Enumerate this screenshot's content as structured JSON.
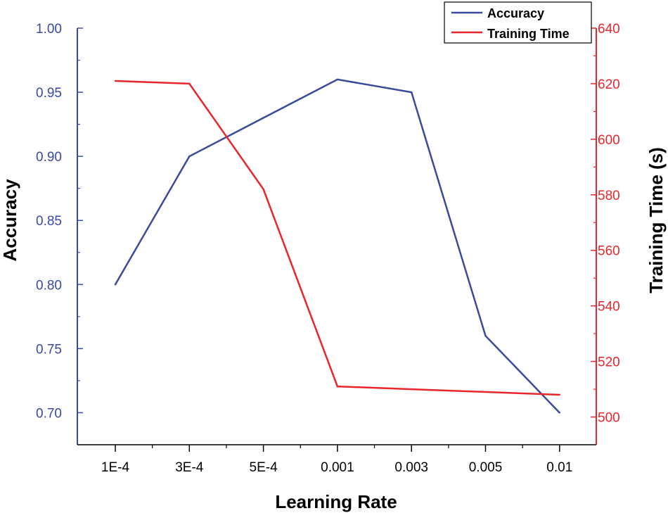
{
  "chart_data": {
    "type": "line",
    "categories": [
      "1E-4",
      "3E-4",
      "5E-4",
      "0.001",
      "0.003",
      "0.005",
      "0.01"
    ],
    "xlabel": "Learning Rate",
    "series": [
      {
        "name": "Accuracy",
        "axis": "left",
        "color": "#3a4a9c",
        "values": [
          0.8,
          0.9,
          0.93,
          0.96,
          0.95,
          0.76,
          0.7
        ]
      },
      {
        "name": "Training Time",
        "axis": "right",
        "color": "#e8262c",
        "values": [
          621,
          620,
          582,
          511,
          510,
          509,
          508
        ]
      }
    ],
    "y_left": {
      "label": "Accuracy",
      "ylim": [
        0.675,
        1.0
      ],
      "ticks": [
        0.7,
        0.75,
        0.8,
        0.85,
        0.9,
        0.95,
        1.0
      ],
      "tick_labels": [
        "0.70",
        "0.75",
        "0.80",
        "0.85",
        "0.90",
        "0.95",
        "1.00"
      ],
      "color": "#3a4a9c"
    },
    "y_right": {
      "label": "Training Time (s)",
      "ylim": [
        490,
        640
      ],
      "ticks": [
        500,
        520,
        540,
        560,
        580,
        600,
        620,
        640
      ],
      "tick_labels": [
        "500",
        "520",
        "540",
        "560",
        "580",
        "600",
        "620",
        "640"
      ],
      "color": "#e8262c"
    },
    "legend": {
      "placement": "top-right"
    },
    "grid": false
  }
}
